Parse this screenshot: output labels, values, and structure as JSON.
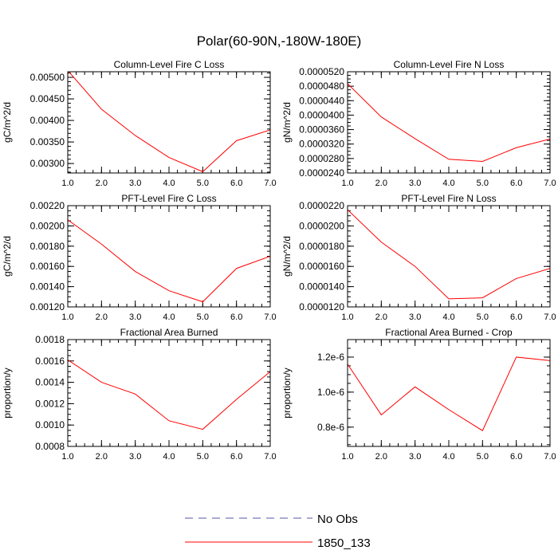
{
  "figure": {
    "title": "Polar(60-90N,-180W-180E)",
    "legend": [
      {
        "label": "No Obs",
        "color": "#5555aa",
        "style": "dashed"
      },
      {
        "label": "1850_133",
        "color": "#ff0000",
        "style": "solid"
      }
    ]
  },
  "chart_data": [
    {
      "type": "line",
      "title": "Column-Level Fire C Loss",
      "xlabel": "",
      "ylabel": "gC/m^2/d",
      "xlim": [
        1,
        7
      ],
      "ylim": [
        0.00278,
        0.00513
      ],
      "xticks": [
        1,
        2,
        3,
        4,
        5,
        6,
        7
      ],
      "xtick_labels": [
        "1.0",
        "2.0",
        "3.0",
        "4.0",
        "5.0",
        "6.0",
        "7.0"
      ],
      "yticks": [
        0.003,
        0.0035,
        0.004,
        0.0045,
        0.005
      ],
      "ytick_labels": [
        "0.00300",
        "0.00350",
        "0.00400",
        "0.00450",
        "0.00500"
      ],
      "yminor": 0.0001,
      "series": [
        {
          "name": "1850_133",
          "color": "#ff0000",
          "x": [
            1,
            2,
            3,
            4,
            5,
            6,
            7
          ],
          "values": [
            0.00516,
            0.00426,
            0.00365,
            0.00314,
            0.00281,
            0.00353,
            0.00378
          ]
        }
      ]
    },
    {
      "type": "line",
      "title": "Column-Level Fire N Loss",
      "xlabel": "",
      "ylabel": "gN/m^2/d",
      "xlim": [
        1,
        7
      ],
      "ylim": [
        2.4e-05,
        5.2e-05
      ],
      "xticks": [
        1,
        2,
        3,
        4,
        5,
        6,
        7
      ],
      "xtick_labels": [
        "1.0",
        "2.0",
        "3.0",
        "4.0",
        "5.0",
        "6.0",
        "7.0"
      ],
      "yticks": [
        2.4e-05,
        2.8e-05,
        3.2e-05,
        3.6e-05,
        4e-05,
        4.4e-05,
        4.8e-05,
        5.2e-05
      ],
      "ytick_labels": [
        "0.0000240",
        "0.0000280",
        "0.0000320",
        "0.0000360",
        "0.0000400",
        "0.0000440",
        "0.0000480",
        "0.0000520"
      ],
      "yminor": 1e-06,
      "series": [
        {
          "name": "1850_133",
          "color": "#ff0000",
          "x": [
            1,
            2,
            3,
            4,
            5,
            6,
            7
          ],
          "values": [
            4.87e-05,
            3.95e-05,
            3.35e-05,
            2.78e-05,
            2.72e-05,
            3.1e-05,
            3.34e-05
          ]
        }
      ]
    },
    {
      "type": "line",
      "title": "PFT-Level Fire C Loss",
      "xlabel": "",
      "ylabel": "gC/m^2/d",
      "xlim": [
        1,
        7
      ],
      "ylim": [
        0.0012,
        0.0022
      ],
      "xticks": [
        1,
        2,
        3,
        4,
        5,
        6,
        7
      ],
      "xtick_labels": [
        "1.0",
        "2.0",
        "3.0",
        "4.0",
        "5.0",
        "6.0",
        "7.0"
      ],
      "yticks": [
        0.0012,
        0.0014,
        0.0016,
        0.0018,
        0.002,
        0.0022
      ],
      "ytick_labels": [
        "0.00120",
        "0.00140",
        "0.00160",
        "0.00180",
        "0.00200",
        "0.00220"
      ],
      "yminor": 5e-05,
      "series": [
        {
          "name": "1850_133",
          "color": "#ff0000",
          "x": [
            1,
            2,
            3,
            4,
            5,
            6,
            7
          ],
          "values": [
            0.00206,
            0.00182,
            0.00155,
            0.00136,
            0.00125,
            0.00158,
            0.0017
          ]
        }
      ]
    },
    {
      "type": "line",
      "title": "PFT-Level Fire N Loss",
      "xlabel": "",
      "ylabel": "gN/m^2/d",
      "xlim": [
        1,
        7
      ],
      "ylim": [
        1.2e-05,
        2.2e-05
      ],
      "xticks": [
        1,
        2,
        3,
        4,
        5,
        6,
        7
      ],
      "xtick_labels": [
        "1.0",
        "2.0",
        "3.0",
        "4.0",
        "5.0",
        "6.0",
        "7.0"
      ],
      "yticks": [
        1.2e-05,
        1.4e-05,
        1.6e-05,
        1.8e-05,
        2e-05,
        2.2e-05
      ],
      "ytick_labels": [
        "0.0000120",
        "0.0000140",
        "0.0000160",
        "0.0000180",
        "0.0000200",
        "0.0000220"
      ],
      "yminor": 5e-07,
      "series": [
        {
          "name": "1850_133",
          "color": "#ff0000",
          "x": [
            1,
            2,
            3,
            4,
            5,
            6,
            7
          ],
          "values": [
            2.16e-05,
            1.84e-05,
            1.6e-05,
            1.28e-05,
            1.29e-05,
            1.48e-05,
            1.58e-05
          ]
        }
      ]
    },
    {
      "type": "line",
      "title": "Fractional Area Burned",
      "xlabel": "",
      "ylabel": "proportion/y",
      "xlim": [
        1,
        7
      ],
      "ylim": [
        0.0008,
        0.0018
      ],
      "xticks": [
        1,
        2,
        3,
        4,
        5,
        6,
        7
      ],
      "xtick_labels": [
        "1.0",
        "2.0",
        "3.0",
        "4.0",
        "5.0",
        "6.0",
        "7.0"
      ],
      "yticks": [
        0.0008,
        0.001,
        0.0012,
        0.0014,
        0.0016,
        0.0018
      ],
      "ytick_labels": [
        "0.0008",
        "0.0010",
        "0.0012",
        "0.0014",
        "0.0016",
        "0.0018"
      ],
      "yminor": 5e-05,
      "series": [
        {
          "name": "1850_133",
          "color": "#ff0000",
          "x": [
            1,
            2,
            3,
            4,
            5,
            6,
            7
          ],
          "values": [
            0.00161,
            0.0014,
            0.00129,
            0.00104,
            0.00096,
            0.00124,
            0.0015
          ]
        }
      ]
    },
    {
      "type": "line",
      "title": "Fractional Area Burned - Crop",
      "xlabel": "",
      "ylabel": "proportion/y",
      "xlim": [
        1,
        7
      ],
      "ylim": [
        6.9e-07,
        1.3e-06
      ],
      "xticks": [
        1,
        2,
        3,
        4,
        5,
        6,
        7
      ],
      "xtick_labels": [
        "1.0",
        "2.0",
        "3.0",
        "4.0",
        "5.0",
        "6.0",
        "7.0"
      ],
      "yticks": [
        8e-07,
        1e-06,
        1.2e-06
      ],
      "ytick_labels": [
        "0.8e-6",
        "1.0e-6",
        "1.2e-6"
      ],
      "yminor": 5e-08,
      "series": [
        {
          "name": "1850_133",
          "color": "#ff0000",
          "x": [
            1,
            2,
            3,
            4,
            5,
            6,
            7
          ],
          "values": [
            1.16e-06,
            8.7e-07,
            1.03e-06,
            9e-07,
            7.8e-07,
            1.2e-06,
            1.18e-06
          ]
        }
      ]
    }
  ]
}
